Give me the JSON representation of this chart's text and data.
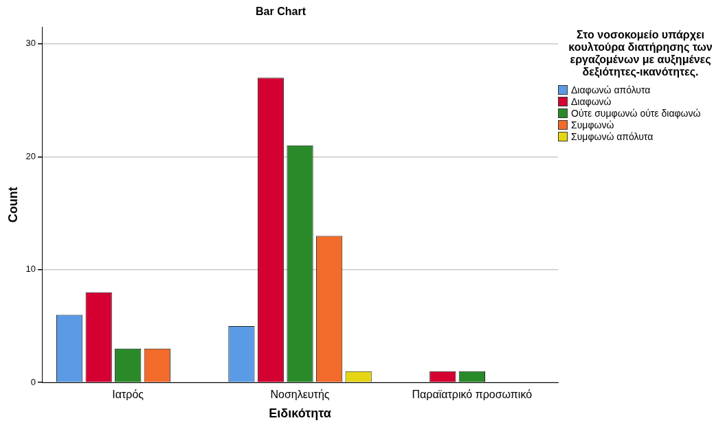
{
  "chart_data": {
    "type": "bar",
    "title": "Bar Chart",
    "xlabel": "Ειδικότητα",
    "ylabel": "Count",
    "legend_title": "Στο νοσοκομείο υπάρχει κουλτούρα διατήρησης των εργαζομένων με αυξημένες δεξιότητες-ικανότητες.",
    "categories": [
      "Ιατρός",
      "Νοσηλευτής",
      "Παραϊατρικό προσωπικό"
    ],
    "series": [
      {
        "name": "Διαφωνώ απόλυτα",
        "color": "#5b9be6",
        "values": [
          6,
          5,
          null
        ]
      },
      {
        "name": "Διαφωνώ",
        "color": "#d50032",
        "values": [
          8,
          27,
          1
        ]
      },
      {
        "name": "Ούτε συμφωνώ ούτε διαφωνώ",
        "color": "#2a8a2a",
        "values": [
          3,
          21,
          1
        ]
      },
      {
        "name": "Συμφωνώ",
        "color": "#f26b2b",
        "values": [
          3,
          13,
          null
        ]
      },
      {
        "name": "Συμφωνώ απόλυτα",
        "color": "#e5d614",
        "values": [
          null,
          1,
          null
        ]
      }
    ],
    "ylim": [
      0,
      31.5
    ],
    "yticks": [
      0,
      10,
      20,
      30
    ],
    "grid": "y",
    "legend": "top right"
  }
}
